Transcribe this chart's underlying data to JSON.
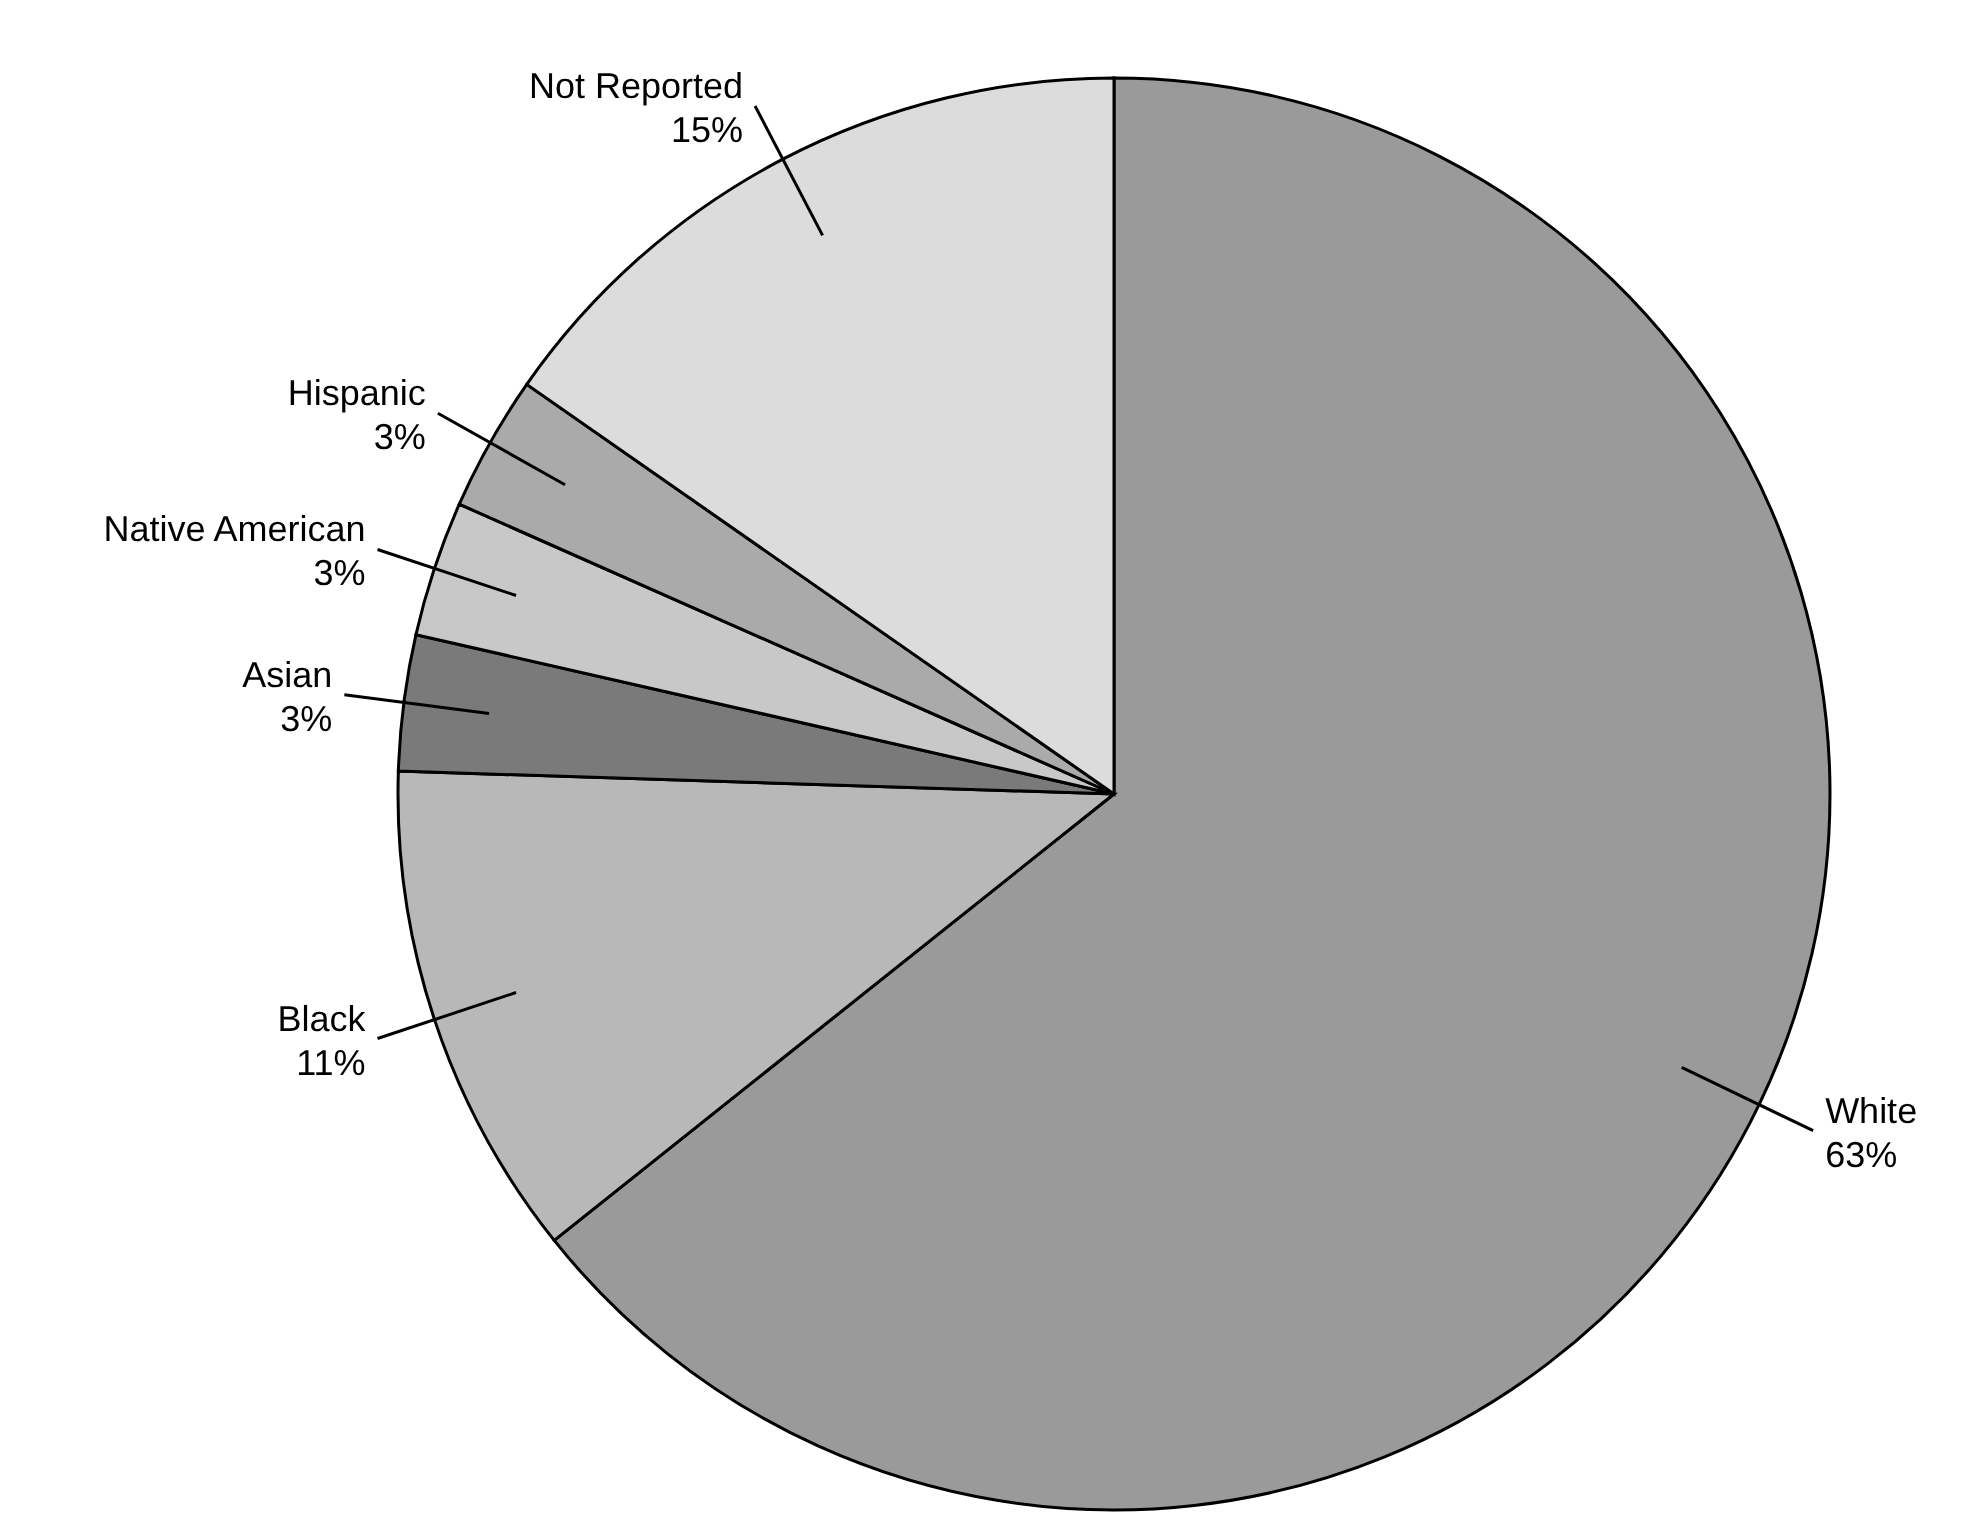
{
  "chart_data": {
    "type": "pie",
    "categories": [
      "White",
      "Black",
      "Asian",
      "Native American",
      "Hispanic",
      "Not Reported"
    ],
    "values": [
      63,
      11,
      3,
      3,
      3,
      15
    ],
    "value_labels": [
      "63%",
      "11%",
      "3%",
      "3%",
      "3%",
      "15%"
    ],
    "colors": [
      "#9a9a9a",
      "#b8b8b8",
      "#7a7a7a",
      "#c8c8c8",
      "#aaaaaa",
      "#dcdcdc"
    ]
  }
}
